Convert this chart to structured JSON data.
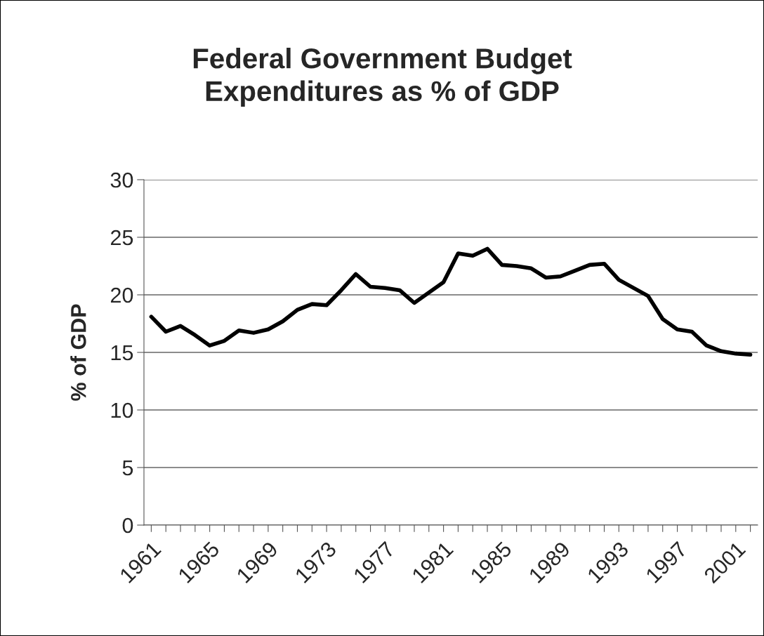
{
  "chart_data": {
    "type": "line",
    "title": "Federal Government Budget\nExpenditures as % of GDP",
    "ylabel": "% of GDP",
    "categories": [
      "1961",
      null,
      null,
      null,
      "1965",
      null,
      null,
      null,
      "1969",
      null,
      null,
      null,
      "1973",
      null,
      null,
      null,
      "1977",
      null,
      null,
      null,
      "1981",
      null,
      null,
      null,
      "1985",
      null,
      null,
      null,
      "1989",
      null,
      null,
      null,
      "1993",
      null,
      null,
      null,
      "1997",
      null,
      null,
      null,
      "2001",
      null
    ],
    "series": [
      {
        "color": "#000000",
        "values": [
          18.1,
          16.8,
          17.3,
          16.5,
          15.6,
          16.0,
          16.9,
          16.7,
          17.0,
          17.7,
          18.7,
          19.2,
          19.1,
          20.4,
          21.8,
          20.7,
          20.6,
          20.4,
          19.3,
          20.2,
          21.1,
          23.6,
          23.4,
          24.0,
          22.6,
          22.5,
          22.3,
          21.5,
          21.6,
          22.1,
          22.6,
          22.7,
          21.3,
          20.6,
          19.9,
          17.9,
          17.0,
          16.8,
          15.6,
          15.1,
          14.9,
          14.8
        ]
      }
    ],
    "ylim": [
      0,
      30
    ],
    "yticks": [
      0,
      5,
      10,
      15,
      20,
      25,
      30
    ],
    "grid": "y",
    "legend": false,
    "marker": "none",
    "line_style": "solid"
  }
}
